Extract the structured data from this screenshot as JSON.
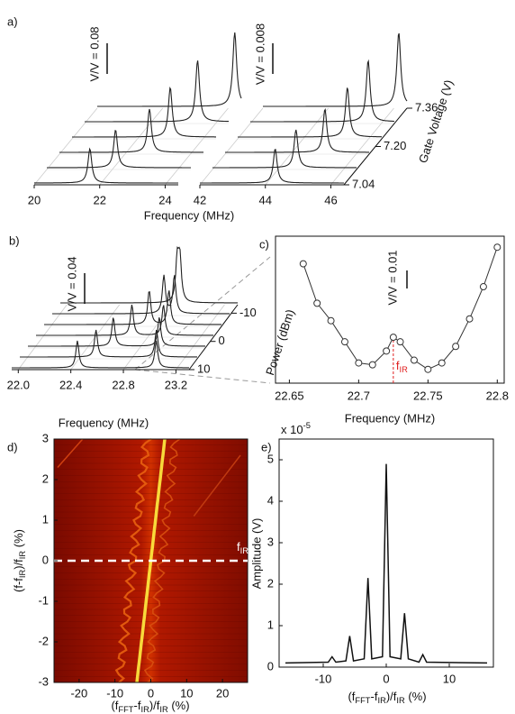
{
  "chart_data": [
    {
      "type": "waterfall",
      "panel": "a)",
      "xlabel": "Frequency (MHz)",
      "zlabel": "Gate Voltage (V)",
      "zlim": [
        7.04,
        7.36
      ],
      "zticks": [
        7.04,
        {
          "value": 7.2,
          "label": "7.20"
        },
        7.36
      ],
      "blocks": [
        {
          "xlim": [
            20,
            24.4
          ],
          "xticks": [
            20,
            22,
            24
          ],
          "scale": "V/V = 0.08",
          "peaks": [
            [
              21.7
            ],
            [
              22.1
            ],
            [
              22.75
            ],
            [
              23.0
            ],
            [
              23.45
            ],
            [
              24.2
            ]
          ]
        },
        {
          "xlim": [
            42,
            46.4
          ],
          "xticks": [
            42,
            44,
            46
          ],
          "scale": "V/V = 0.008",
          "peaks": [
            [
              44.3
            ],
            [
              44.55
            ],
            [
              45.05
            ],
            [
              45.35
            ],
            [
              45.6
            ],
            [
              46.15
            ]
          ]
        }
      ]
    },
    {
      "type": "waterfall",
      "panel": "b)",
      "xlabel": "Frequency (MHz)",
      "zlabel": "Power (dBm)",
      "zlim": [
        10,
        -13
      ],
      "zticks": [
        10,
        0,
        -10
      ],
      "blocks": [
        {
          "xlim": [
            21.95,
            23.3
          ],
          "xticks": [
            {
              "value": 22,
              "label": "22.0"
            },
            22.4,
            22.8,
            23.2
          ],
          "scale": "V/V = 0.04",
          "peaks": [
            [
              22.45,
              23.05
            ],
            [
              22.53,
              22.99
            ],
            [
              22.6,
              22.95
            ],
            [
              22.68,
              22.92
            ],
            [
              22.75,
              22.9
            ],
            [
              22.8,
              22.88
            ],
            [
              22.84,
              22.86
            ]
          ]
        }
      ]
    },
    {
      "type": "points",
      "panel": "c)",
      "xlabel": "Frequency (MHz)",
      "scale": "V/V = 0.01",
      "xlim": [
        22.64,
        22.805
      ],
      "xticks": [
        22.65,
        22.7,
        22.75,
        22.8
      ],
      "ylim": [
        0,
        0.08
      ],
      "x": [
        22.66,
        22.67,
        22.68,
        22.69,
        22.7,
        22.71,
        22.72,
        22.725,
        22.73,
        22.74,
        22.75,
        22.76,
        22.77,
        22.78,
        22.79,
        22.8
      ],
      "values": [
        0.065,
        0.0435,
        0.034,
        0.0225,
        0.011,
        0.01,
        0.0175,
        0.025,
        0.0225,
        0.0125,
        0.0075,
        0.011,
        0.02,
        0.035,
        0.0525,
        0.074
      ],
      "marker": 22.725,
      "marker_label": [
        "f",
        "IR"
      ],
      "color": "#e02020"
    },
    {
      "type": "heatmap",
      "panel": "d)",
      "xlim": [
        -27,
        27
      ],
      "xticks": [
        -20,
        -10,
        0,
        10,
        20
      ],
      "ylim": [
        -3,
        3
      ],
      "yticks": [
        -3,
        -2,
        -1,
        0,
        1,
        2,
        3
      ],
      "hline": 0,
      "hline_label": [
        "f",
        "IR"
      ],
      "xlabel": [
        "(f",
        "FFT",
        "-f",
        "IR",
        ")/f",
        "IR",
        " (%)"
      ],
      "ylabel": [
        "(f-f",
        "IR",
        ")/f",
        "IR",
        " (%)"
      ]
    },
    {
      "type": "line",
      "panel": "e)",
      "xlim": [
        -17,
        17
      ],
      "xticks": [
        -10,
        0,
        10
      ],
      "ylim": [
        0,
        5.5
      ],
      "yticks": [
        0,
        1,
        2,
        3,
        4,
        5
      ],
      "yscale": [
        "x 10",
        "-5"
      ],
      "ylabel": "Amplitude (V)",
      "xlabel": [
        "(f",
        "FFT",
        "-f",
        "IR",
        ")/f",
        "IR",
        " (%)"
      ],
      "color": "#111111",
      "x": [
        -16,
        -9.2,
        -8.6,
        -8,
        -6.4,
        -5.8,
        -5.2,
        -3.5,
        -2.9,
        -2.3,
        -0.6,
        0,
        0.6,
        2.3,
        2.9,
        3.5,
        5.2,
        5.8,
        6.4,
        16
      ],
      "values": [
        0.1,
        0.12,
        0.25,
        0.12,
        0.15,
        0.75,
        0.15,
        0.2,
        2.15,
        0.2,
        0.25,
        4.9,
        0.25,
        0.2,
        1.3,
        0.2,
        0.12,
        0.3,
        0.12,
        0.1
      ]
    }
  ]
}
